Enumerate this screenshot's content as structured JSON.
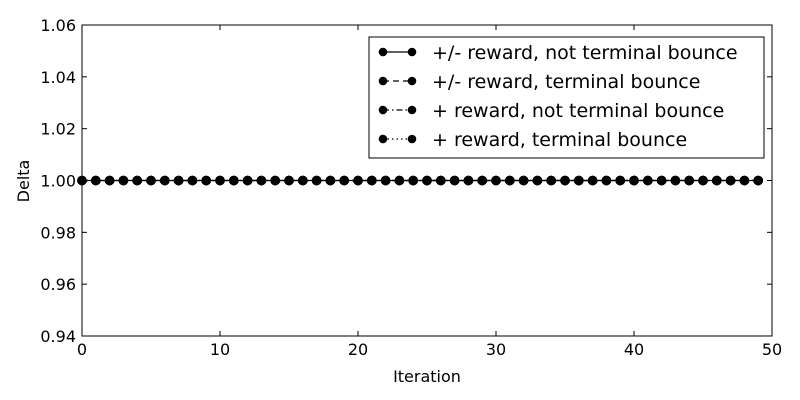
{
  "chart_data": {
    "type": "line",
    "title": "",
    "xlabel": "Iteration",
    "ylabel": "Delta",
    "xlim": [
      0,
      50
    ],
    "ylim": [
      0.94,
      1.06
    ],
    "xticks": [
      0,
      10,
      20,
      30,
      40,
      50
    ],
    "yticks": [
      0.94,
      0.96,
      0.98,
      1.0,
      1.02,
      1.04,
      1.06
    ],
    "ytick_labels": [
      "0.94",
      "0.96",
      "0.98",
      "1.00",
      "1.02",
      "1.04",
      "1.06"
    ],
    "grid": false,
    "legend_position": "top-right",
    "x": [
      0,
      1,
      2,
      3,
      4,
      5,
      6,
      7,
      8,
      9,
      10,
      11,
      12,
      13,
      14,
      15,
      16,
      17,
      18,
      19,
      20,
      21,
      22,
      23,
      24,
      25,
      26,
      27,
      28,
      29,
      30,
      31,
      32,
      33,
      34,
      35,
      36,
      37,
      38,
      39,
      40,
      41,
      42,
      43,
      44,
      45,
      46,
      47,
      48,
      49
    ],
    "series": [
      {
        "name": "+/- reward, not terminal bounce",
        "linestyle": "solid",
        "marker": "circle",
        "color": "#000000",
        "values": [
          1,
          1,
          1,
          1,
          1,
          1,
          1,
          1,
          1,
          1,
          1,
          1,
          1,
          1,
          1,
          1,
          1,
          1,
          1,
          1,
          1,
          1,
          1,
          1,
          1,
          1,
          1,
          1,
          1,
          1,
          1,
          1,
          1,
          1,
          1,
          1,
          1,
          1,
          1,
          1,
          1,
          1,
          1,
          1,
          1,
          1,
          1,
          1,
          1,
          1
        ]
      },
      {
        "name": "+/- reward, terminal bounce",
        "linestyle": "dashed",
        "marker": "circle",
        "color": "#000000",
        "values": [
          1,
          1,
          1,
          1,
          1,
          1,
          1,
          1,
          1,
          1,
          1,
          1,
          1,
          1,
          1,
          1,
          1,
          1,
          1,
          1,
          1,
          1,
          1,
          1,
          1,
          1,
          1,
          1,
          1,
          1,
          1,
          1,
          1,
          1,
          1,
          1,
          1,
          1,
          1,
          1,
          1,
          1,
          1,
          1,
          1,
          1,
          1,
          1,
          1,
          1
        ]
      },
      {
        "name": "+ reward, not terminal bounce",
        "linestyle": "dashdot",
        "marker": "circle",
        "color": "#000000",
        "values": [
          1,
          1,
          1,
          1,
          1,
          1,
          1,
          1,
          1,
          1,
          1,
          1,
          1,
          1,
          1,
          1,
          1,
          1,
          1,
          1,
          1,
          1,
          1,
          1,
          1,
          1,
          1,
          1,
          1,
          1,
          1,
          1,
          1,
          1,
          1,
          1,
          1,
          1,
          1,
          1,
          1,
          1,
          1,
          1,
          1,
          1,
          1,
          1,
          1,
          1
        ]
      },
      {
        "name": "+ reward, terminal bounce",
        "linestyle": "dotted",
        "marker": "circle",
        "color": "#000000",
        "values": [
          1,
          1,
          1,
          1,
          1,
          1,
          1,
          1,
          1,
          1,
          1,
          1,
          1,
          1,
          1,
          1,
          1,
          1,
          1,
          1,
          1,
          1,
          1,
          1,
          1,
          1,
          1,
          1,
          1,
          1,
          1,
          1,
          1,
          1,
          1,
          1,
          1,
          1,
          1,
          1,
          1,
          1,
          1,
          1,
          1,
          1,
          1,
          1,
          1,
          1
        ]
      }
    ]
  }
}
